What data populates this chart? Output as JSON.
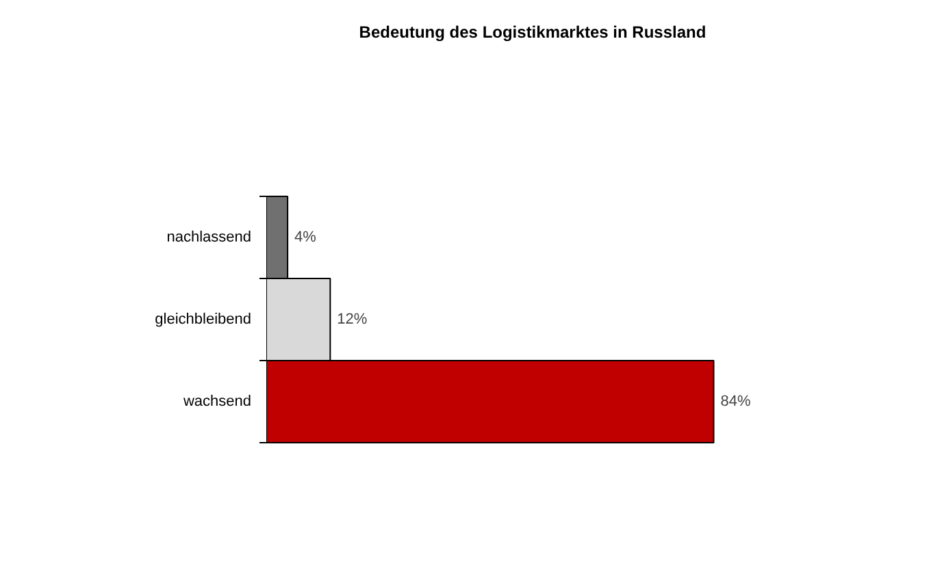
{
  "chart_data": {
    "type": "bar",
    "orientation": "horizontal",
    "title": "Bedeutung des Logistikmarktes in Russland",
    "categories": [
      "nachlassend",
      "gleichbleibend",
      "wachsend"
    ],
    "values": [
      4,
      12,
      84
    ],
    "colors": [
      "#707070",
      "#d9d9d9",
      "#c00000"
    ],
    "value_labels": [
      "4%",
      "12%",
      "84%"
    ],
    "tick_labels": "y",
    "grid": false
  }
}
